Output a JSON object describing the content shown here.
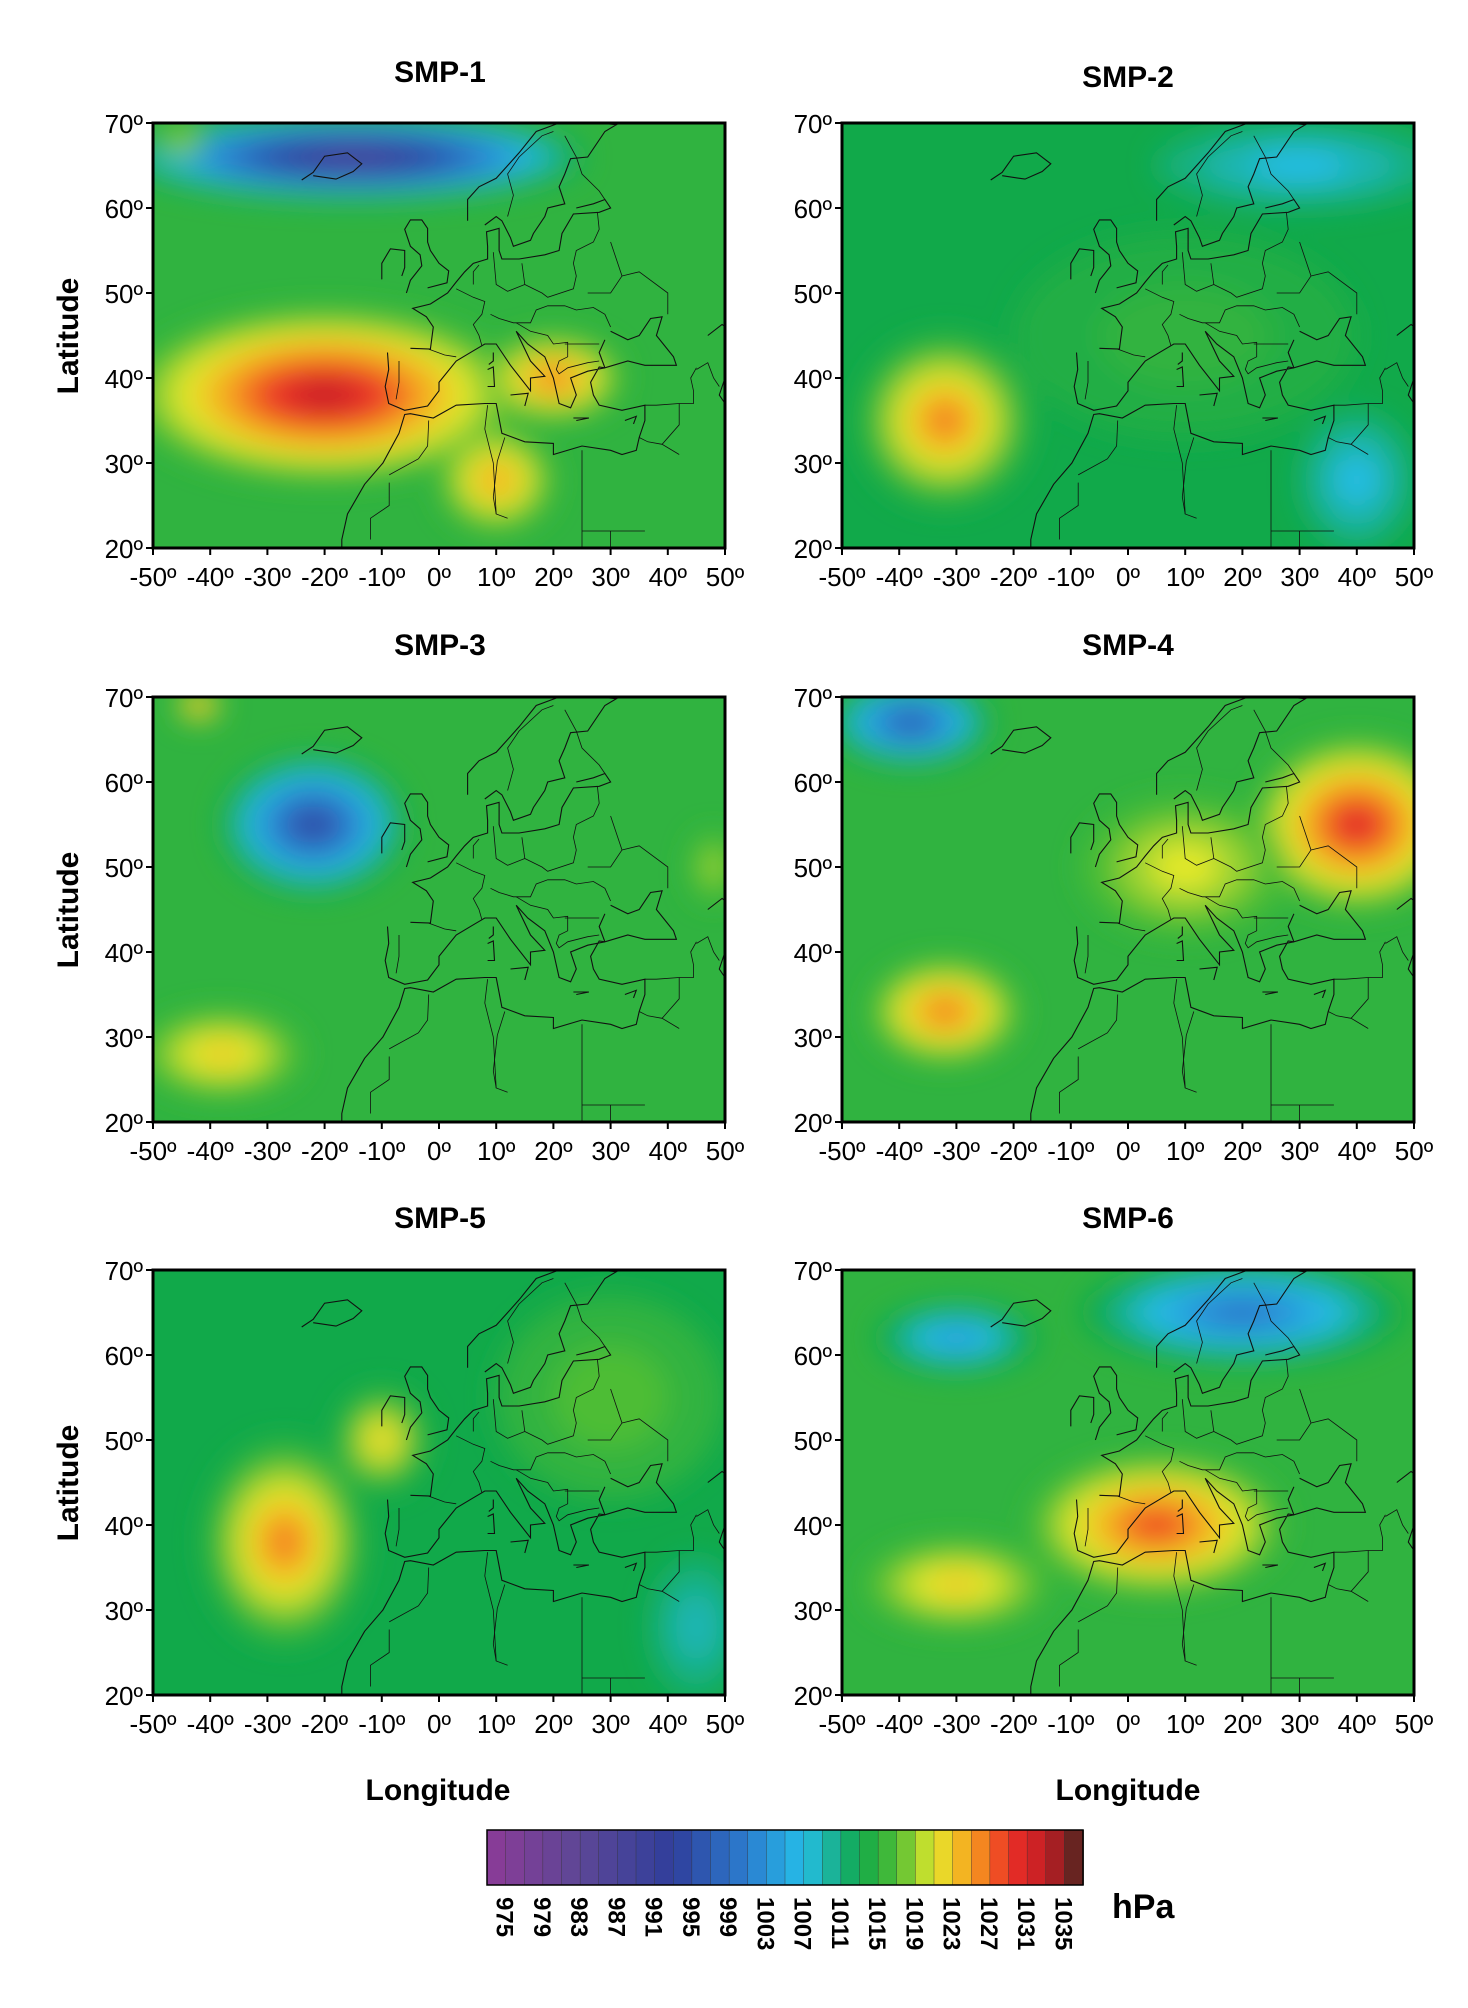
{
  "figure": {
    "y_axis_label": "Latitude",
    "x_axis_label": "Longitude",
    "lat_ticks": [
      "70º",
      "60º",
      "50º",
      "40º",
      "30º",
      "20º"
    ],
    "lon_ticks": [
      "-50º",
      "-40º",
      "-30º",
      "-20º",
      "-10º",
      "0º",
      "10º",
      "20º",
      "30º",
      "40º",
      "50º"
    ],
    "lat_range": [
      20,
      70
    ],
    "lon_range": [
      -50,
      50
    ],
    "panels": [
      {
        "id": "SMP-1",
        "title": "SMP-1",
        "background_hPa": 1015,
        "pressure_centers": [
          {
            "lon": -20,
            "lat": 38,
            "hPa": 1033,
            "rx": 34,
            "ry": 10
          },
          {
            "lon": 20,
            "lat": 40,
            "hPa": 1027,
            "rx": 12,
            "ry": 5
          },
          {
            "lon": 10,
            "lat": 28,
            "hPa": 1025,
            "rx": 10,
            "ry": 6
          },
          {
            "lon": -15,
            "lat": 66,
            "hPa": 985,
            "rx": 40,
            "ry": 5
          },
          {
            "lon": -45,
            "lat": 68,
            "hPa": 1019,
            "rx": 4,
            "ry": 2
          }
        ]
      },
      {
        "id": "SMP-2",
        "title": "SMP-2",
        "background_hPa": 1013,
        "pressure_centers": [
          {
            "lon": -32,
            "lat": 35,
            "hPa": 1027,
            "rx": 15,
            "ry": 10
          },
          {
            "lon": 10,
            "lat": 45,
            "hPa": 1015,
            "rx": 30,
            "ry": 12
          },
          {
            "lon": 30,
            "lat": 65,
            "hPa": 1007,
            "rx": 25,
            "ry": 5
          },
          {
            "lon": 40,
            "lat": 28,
            "hPa": 1007,
            "rx": 10,
            "ry": 8
          }
        ]
      },
      {
        "id": "SMP-3",
        "title": "SMP-3",
        "background_hPa": 1015,
        "pressure_centers": [
          {
            "lon": -22,
            "lat": 55,
            "hPa": 993,
            "rx": 16,
            "ry": 8
          },
          {
            "lon": -38,
            "lat": 28,
            "hPa": 1023,
            "rx": 14,
            "ry": 5
          },
          {
            "lon": -42,
            "lat": 69,
            "hPa": 1027,
            "rx": 4,
            "ry": 2
          },
          {
            "lon": 48,
            "lat": 50,
            "hPa": 1019,
            "rx": 4,
            "ry": 4
          }
        ]
      },
      {
        "id": "SMP-4",
        "title": "SMP-4",
        "background_hPa": 1015,
        "pressure_centers": [
          {
            "lon": 40,
            "lat": 55,
            "hPa": 1031,
            "rx": 18,
            "ry": 10
          },
          {
            "lon": -32,
            "lat": 33,
            "hPa": 1027,
            "rx": 13,
            "ry": 6
          },
          {
            "lon": -38,
            "lat": 67,
            "hPa": 995,
            "rx": 14,
            "ry": 5
          },
          {
            "lon": 10,
            "lat": 50,
            "hPa": 1021,
            "rx": 18,
            "ry": 8
          }
        ]
      },
      {
        "id": "SMP-5",
        "title": "SMP-5",
        "background_hPa": 1013,
        "pressure_centers": [
          {
            "lon": -27,
            "lat": 38,
            "hPa": 1027,
            "rx": 14,
            "ry": 12
          },
          {
            "lon": -10,
            "lat": 50,
            "hPa": 1023,
            "rx": 8,
            "ry": 6
          },
          {
            "lon": 30,
            "lat": 55,
            "hPa": 1017,
            "rx": 20,
            "ry": 12
          },
          {
            "lon": 45,
            "lat": 28,
            "hPa": 1009,
            "rx": 8,
            "ry": 8
          }
        ]
      },
      {
        "id": "SMP-6",
        "title": "SMP-6",
        "background_hPa": 1015,
        "pressure_centers": [
          {
            "lon": 5,
            "lat": 40,
            "hPa": 1029,
            "rx": 22,
            "ry": 8
          },
          {
            "lon": 20,
            "lat": 65,
            "hPa": 999,
            "rx": 28,
            "ry": 6
          },
          {
            "lon": -30,
            "lat": 62,
            "hPa": 1003,
            "rx": 14,
            "ry": 4
          },
          {
            "lon": -30,
            "lat": 33,
            "hPa": 1023,
            "rx": 16,
            "ry": 5
          }
        ]
      }
    ]
  },
  "colorbar": {
    "unit": "hPa",
    "min_hPa": 973,
    "max_hPa": 1037,
    "tick_labels": [
      "975",
      "979",
      "983",
      "987",
      "991",
      "995",
      "999",
      "1003",
      "1007",
      "1011",
      "1015",
      "1019",
      "1023",
      "1027",
      "1031",
      "1035"
    ],
    "color_stops": [
      {
        "hPa": 973,
        "color": "#8c3b97"
      },
      {
        "hPa": 983,
        "color": "#5c4796"
      },
      {
        "hPa": 993,
        "color": "#2f3e9b"
      },
      {
        "hPa": 1001,
        "color": "#2b7ed0"
      },
      {
        "hPa": 1007,
        "color": "#25bde8"
      },
      {
        "hPa": 1013,
        "color": "#11a94a"
      },
      {
        "hPa": 1017,
        "color": "#4ebd35"
      },
      {
        "hPa": 1021,
        "color": "#e5e92c"
      },
      {
        "hPa": 1025,
        "color": "#f7a21e"
      },
      {
        "hPa": 1029,
        "color": "#ec3026"
      },
      {
        "hPa": 1033,
        "color": "#c31d24"
      },
      {
        "hPa": 1037,
        "color": "#4a2620"
      }
    ]
  }
}
